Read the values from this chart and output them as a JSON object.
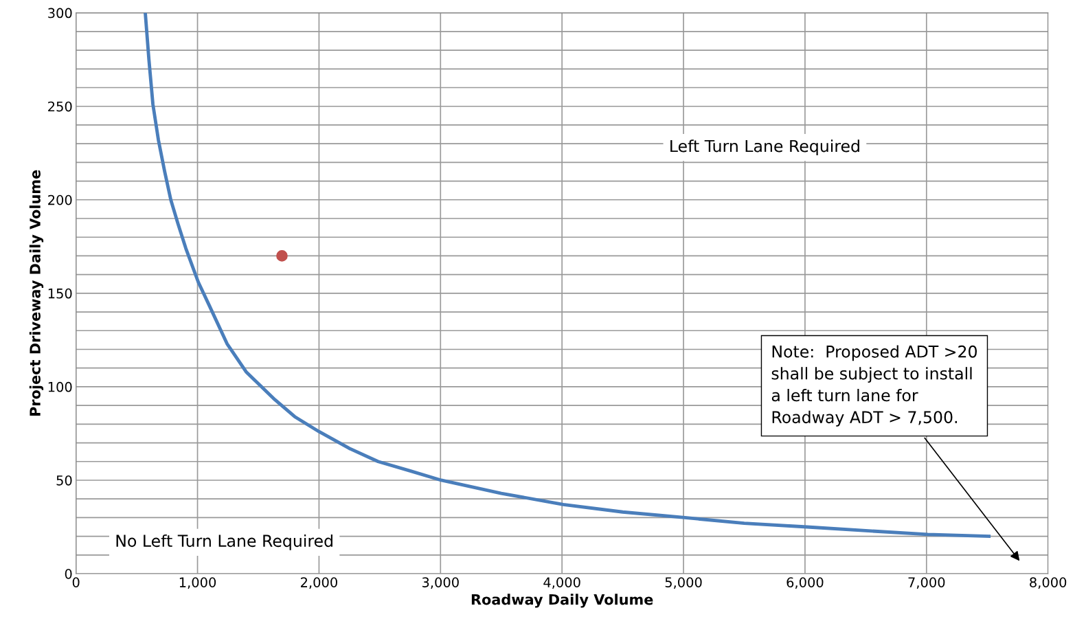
{
  "chart_data": {
    "type": "line",
    "xlabel": "Roadway Daily Volume",
    "ylabel": "Project Driveway Daily Volume",
    "xlim": [
      0,
      8000
    ],
    "xticks": [
      {
        "value": 0,
        "label": "0"
      },
      {
        "value": 1000,
        "label": "1,000"
      },
      {
        "value": 2000,
        "label": "2,000"
      },
      {
        "value": 3000,
        "label": "3,000"
      },
      {
        "value": 4000,
        "label": "4,000"
      },
      {
        "value": 5000,
        "label": "5,000"
      },
      {
        "value": 6000,
        "label": "6,000"
      },
      {
        "value": 7000,
        "label": "7,000"
      },
      {
        "value": 8000,
        "label": "8,000"
      }
    ],
    "ylim": [
      0,
      300
    ],
    "yticks": [
      0,
      {
        "value": 10,
        "label": null
      },
      {
        "value": 20,
        "label": null
      },
      {
        "value": 30,
        "label": null
      },
      {
        "value": 40,
        "label": null
      },
      50,
      {
        "value": 60,
        "label": null
      },
      {
        "value": 70,
        "label": null
      },
      {
        "value": 80,
        "label": null
      },
      {
        "value": 90,
        "label": null
      },
      100,
      {
        "value": 110,
        "label": null
      },
      {
        "value": 120,
        "label": null
      },
      {
        "value": 130,
        "label": null
      },
      {
        "value": 140,
        "label": null
      },
      150,
      {
        "value": 160,
        "label": null
      },
      {
        "value": 170,
        "label": null
      },
      {
        "value": 180,
        "label": null
      },
      {
        "value": 190,
        "label": null
      },
      200,
      {
        "value": 210,
        "label": null
      },
      {
        "value": 220,
        "label": null
      },
      {
        "value": 230,
        "label": null
      },
      {
        "value": 240,
        "label": null
      },
      250,
      {
        "value": 260,
        "label": null
      },
      {
        "value": 270,
        "label": null
      },
      {
        "value": 280,
        "label": null
      },
      {
        "value": 290,
        "label": null
      },
      300
    ],
    "grid": true,
    "series": [
      {
        "color": "#4a7ebb",
        "x": [
          570,
          600,
          633,
          678,
          730,
          780,
          840,
          904,
          1006,
          1100,
          1243,
          1400,
          1638,
          1800,
          2000,
          2250,
          2486,
          2750,
          3006,
          3500,
          4011,
          4500,
          5011,
          5500,
          6017,
          6500,
          7011,
          7514
        ],
        "values": [
          300,
          275,
          251,
          232,
          215,
          200,
          187,
          174,
          156,
          143,
          123,
          108,
          93,
          84,
          76,
          67,
          60,
          55,
          50,
          43,
          37,
          33,
          30,
          27,
          25,
          23,
          21,
          20
        ]
      },
      {
        "type": "scatter",
        "color": "#c0504d",
        "marker": "circle",
        "x": [
          1695
        ],
        "values": [
          170
        ]
      }
    ],
    "annotations": [
      "Left Turn Lane Required",
      "No Left Turn Lane Required",
      "Note:  Proposed ADT >20\nshall be subject to install\na left turn lane for\nRoadway ADT > 7,500."
    ]
  }
}
